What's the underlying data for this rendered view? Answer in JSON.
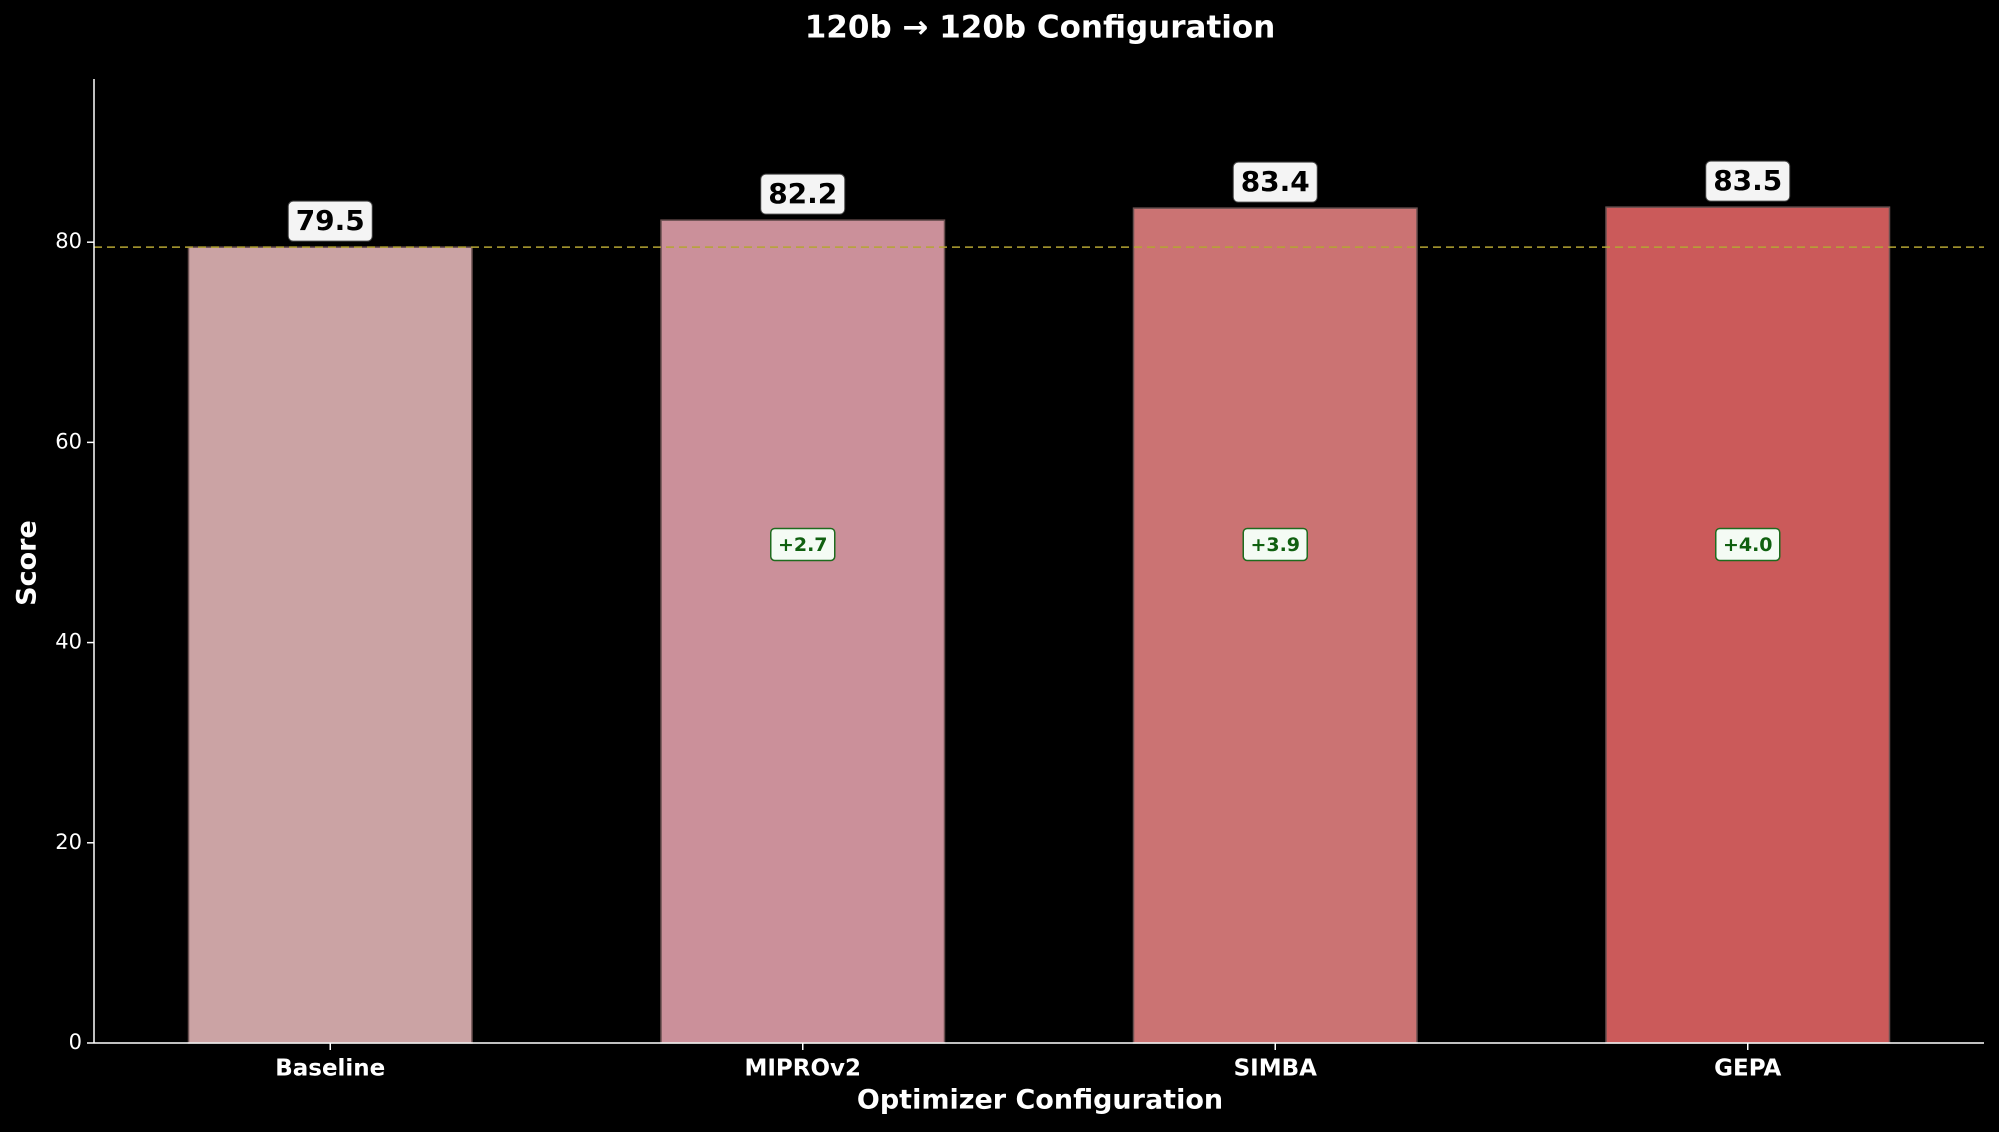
{
  "chart_data": {
    "type": "bar",
    "title": "120b → 120b Configuration",
    "x_label": "Optimizer Configuration",
    "y_label": "Score",
    "categories": [
      "Baseline",
      "MIPROv2",
      "SIMBA",
      "GEPA"
    ],
    "values": [
      79.5,
      82.2,
      83.4,
      83.5
    ],
    "colors": [
      "#cba3a4",
      "#cb909a",
      "#cb7373",
      "#cb5a5a"
    ],
    "improvement_labels": [
      null,
      "+2.7",
      "+3.9",
      "+4.0"
    ],
    "reference_line": 79.5,
    "ylim": [
      0,
      96.3
    ],
    "yticks": [
      0,
      20,
      40,
      60,
      80
    ]
  }
}
